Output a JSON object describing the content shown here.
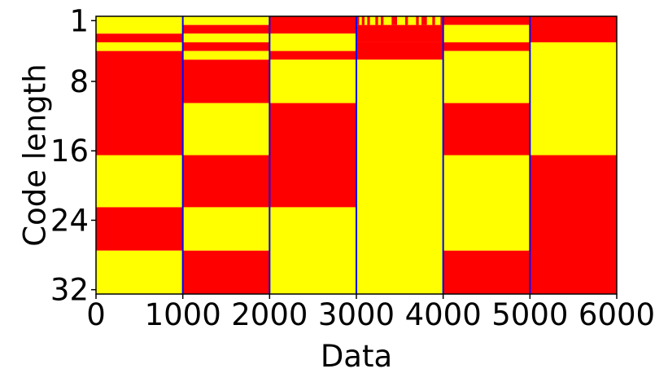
{
  "chart_data": {
    "type": "heatmap",
    "title": "",
    "xlabel": "Data",
    "ylabel": "Code length",
    "xlim": [
      0,
      6000
    ],
    "ylim": [
      1,
      32
    ],
    "y_inverted": true,
    "xticks": [
      0,
      1000,
      2000,
      3000,
      4000,
      5000,
      6000
    ],
    "xtick_labels": [
      "0",
      "1000",
      "2000",
      "3000",
      "4000",
      "5000",
      "6000"
    ],
    "yticks": [
      1,
      8,
      16,
      24,
      32
    ],
    "ytick_labels": [
      "1",
      "8",
      "16",
      "24",
      "32"
    ],
    "grid": false,
    "legend": "none",
    "colors": {
      "bit_0": "#ffff00",
      "bit_1": "#ff0000",
      "separator": "#0000ff"
    },
    "separators": [
      1000,
      2000,
      3000,
      4000,
      5000
    ],
    "columns": [
      {
        "x_range": [
          0,
          1000
        ],
        "runs": [
          {
            "from": 1,
            "to": 2,
            "value": 0
          },
          {
            "from": 3,
            "to": 3,
            "value": 1
          },
          {
            "from": 4,
            "to": 4,
            "value": 0
          },
          {
            "from": 5,
            "to": 16,
            "value": 1
          },
          {
            "from": 17,
            "to": 22,
            "value": 0
          },
          {
            "from": 23,
            "to": 27,
            "value": 1
          },
          {
            "from": 28,
            "to": 32,
            "value": 0
          }
        ]
      },
      {
        "x_range": [
          1000,
          2000
        ],
        "runs": [
          {
            "from": 1,
            "to": 1,
            "value": 0
          },
          {
            "from": 2,
            "to": 2,
            "value": 1
          },
          {
            "from": 3,
            "to": 3,
            "value": 0
          },
          {
            "from": 4,
            "to": 4,
            "value": 1
          },
          {
            "from": 5,
            "to": 5,
            "value": 0
          },
          {
            "from": 6,
            "to": 10,
            "value": 1
          },
          {
            "from": 11,
            "to": 16,
            "value": 0
          },
          {
            "from": 17,
            "to": 22,
            "value": 1
          },
          {
            "from": 23,
            "to": 27,
            "value": 0
          },
          {
            "from": 28,
            "to": 32,
            "value": 1
          }
        ]
      },
      {
        "x_range": [
          2000,
          3000
        ],
        "runs": [
          {
            "from": 1,
            "to": 2,
            "value": 1
          },
          {
            "from": 3,
            "to": 4,
            "value": 0
          },
          {
            "from": 5,
            "to": 5,
            "value": 1
          },
          {
            "from": 6,
            "to": 10,
            "value": 0
          },
          {
            "from": 11,
            "to": 22,
            "value": 1
          },
          {
            "from": 23,
            "to": 32,
            "value": 0
          }
        ]
      },
      {
        "x_range": [
          3000,
          4000
        ],
        "top_row_pattern": [
          1,
          0,
          1,
          0,
          1,
          0,
          0,
          1,
          0,
          1,
          0,
          0,
          0,
          1,
          1,
          0,
          0,
          0,
          1,
          0,
          0,
          0,
          1,
          0,
          1,
          1,
          0,
          0,
          1,
          0,
          0,
          1
        ],
        "runs": [
          {
            "from": 1,
            "to": 1,
            "value": "pattern"
          },
          {
            "from": 2,
            "to": 3,
            "value": 1
          },
          {
            "from": 4,
            "to": 5,
            "value": 1
          },
          {
            "from": 6,
            "to": 32,
            "value": 0
          }
        ]
      },
      {
        "x_range": [
          4000,
          5000
        ],
        "runs": [
          {
            "from": 1,
            "to": 1,
            "value": 1
          },
          {
            "from": 2,
            "to": 3,
            "value": 0
          },
          {
            "from": 4,
            "to": 4,
            "value": 1
          },
          {
            "from": 5,
            "to": 10,
            "value": 0
          },
          {
            "from": 11,
            "to": 16,
            "value": 1
          },
          {
            "from": 17,
            "to": 27,
            "value": 0
          },
          {
            "from": 28,
            "to": 32,
            "value": 1
          }
        ]
      },
      {
        "x_range": [
          5000,
          6000
        ],
        "runs": [
          {
            "from": 1,
            "to": 3,
            "value": 1
          },
          {
            "from": 4,
            "to": 16,
            "value": 0
          },
          {
            "from": 17,
            "to": 32,
            "value": 1
          }
        ]
      }
    ]
  }
}
